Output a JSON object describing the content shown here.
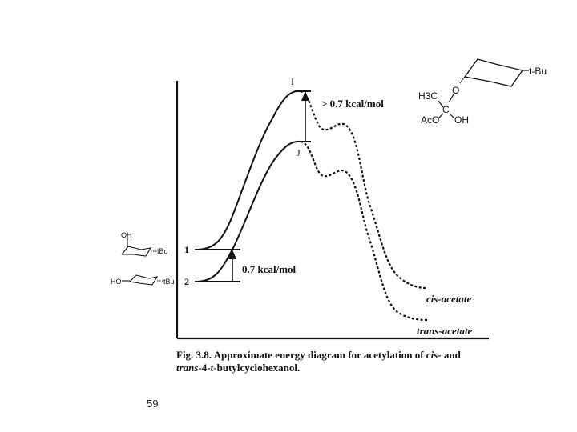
{
  "labels": {
    "ts_upper": "I",
    "ts_lower": "J",
    "gap_ts": "> 0.7 kcal/mol",
    "gap_ground": "0.7 kcal/mol",
    "ground_1": "1",
    "ground_2": "2",
    "product_cis": "cis-acetate",
    "product_trans": "trans-acetate"
  },
  "structures": {
    "intermediate": {
      "ch3": "H3C",
      "o": "O",
      "c": "C",
      "aco": "AcO",
      "oh": "OH",
      "tbu": "t-Bu"
    },
    "conformer_1": {
      "oh": "OH",
      "tbu": "tBu"
    },
    "conformer_2": {
      "ho": "HO",
      "tbu": "tBu"
    }
  },
  "caption": {
    "part1": "Fig. 3.8.  Approximate energy diagram for acetylation of ",
    "cis": "cis-",
    "part2": " and",
    "trans": "trans",
    "part3": "-4-",
    "t": "t",
    "part4": "-butylcyclohexanol."
  },
  "page_number": "59",
  "colors": {
    "ink": "#111111",
    "background": "#ffffff"
  }
}
